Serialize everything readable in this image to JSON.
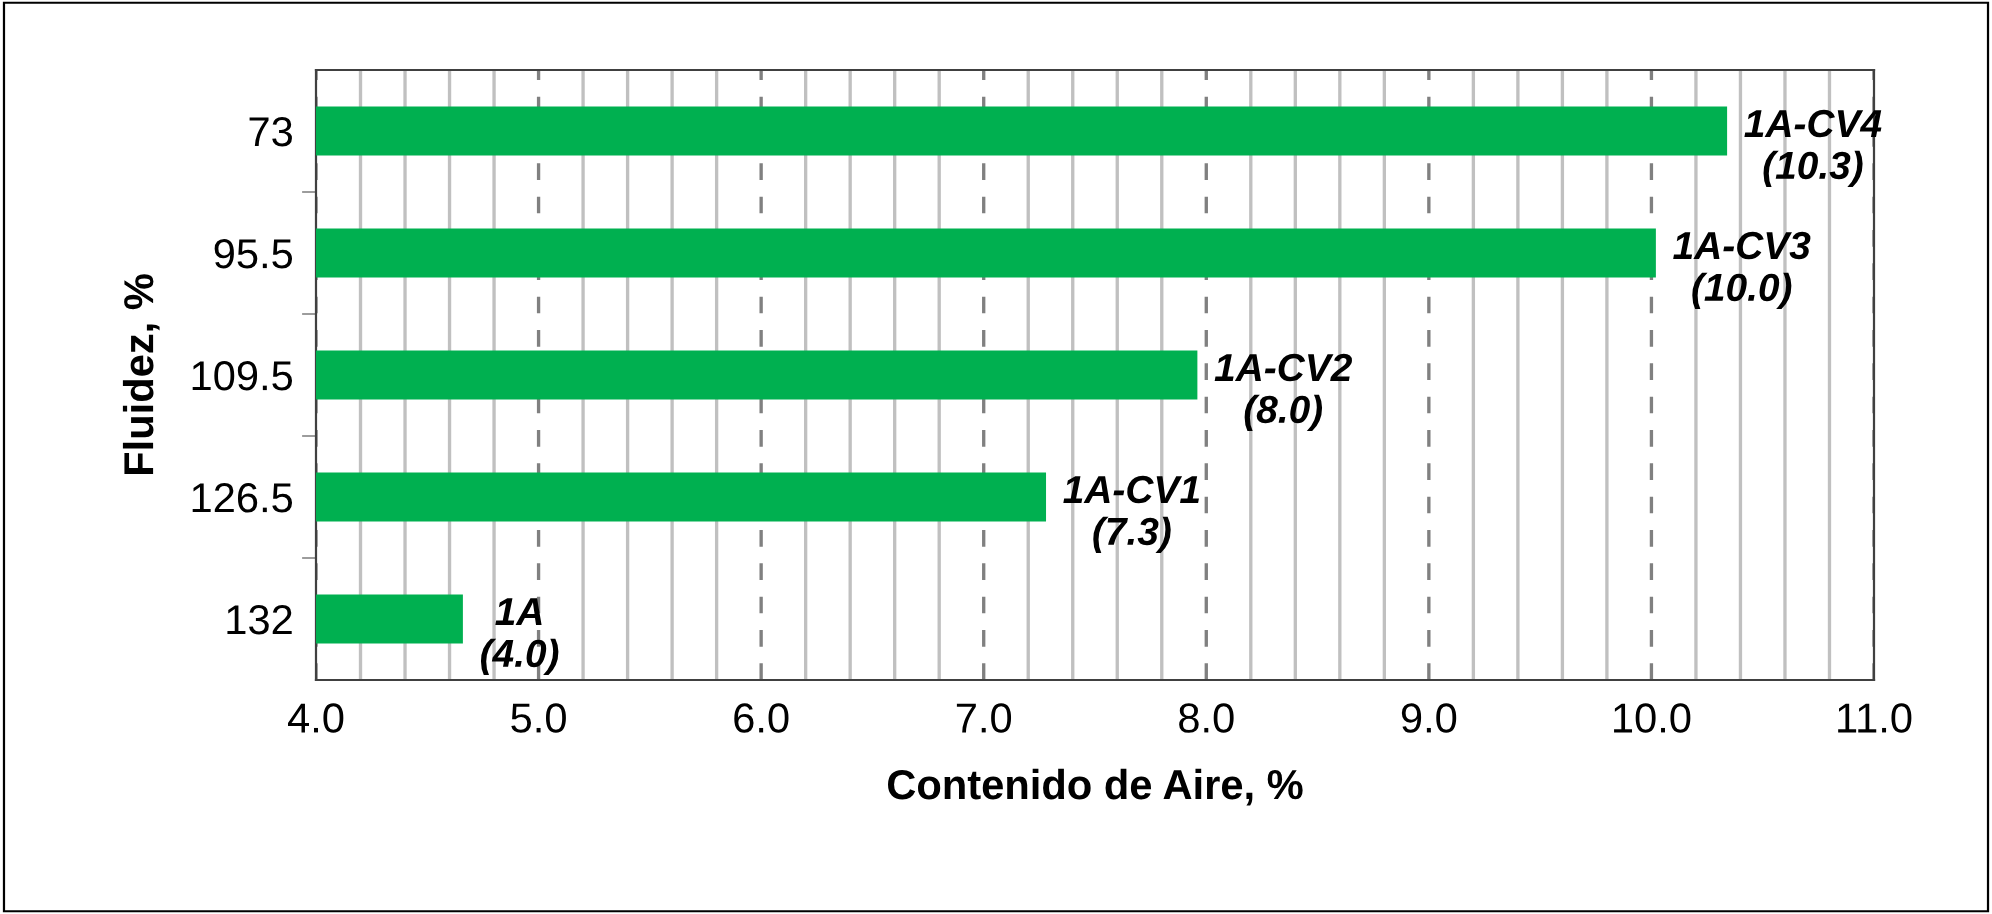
{
  "chart_data": {
    "type": "bar",
    "orientation": "horizontal",
    "categories": [
      "73",
      "95.5",
      "109.5",
      "126.5",
      "132"
    ],
    "values": [
      10.34,
      10.02,
      7.96,
      7.28,
      4.66
    ],
    "color": "#00b050",
    "xlabel": "Contenido de Aire, %",
    "ylabel": "Fluidez, %",
    "xlim": [
      4.0,
      11.0
    ],
    "xticks": [
      {
        "value": 4,
        "label": "4.0"
      },
      {
        "value": 4.2,
        "label": null
      },
      {
        "value": 4.4,
        "label": null
      },
      {
        "value": 4.6,
        "label": null
      },
      {
        "value": 4.8,
        "label": null
      },
      {
        "value": 5,
        "label": "5.0"
      },
      {
        "value": 5.2,
        "label": null
      },
      {
        "value": 5.4,
        "label": null
      },
      {
        "value": 5.6,
        "label": null
      },
      {
        "value": 5.8,
        "label": null
      },
      {
        "value": 6,
        "label": "6.0"
      },
      {
        "value": 6.2,
        "label": null
      },
      {
        "value": 6.4,
        "label": null
      },
      {
        "value": 6.6,
        "label": null
      },
      {
        "value": 6.8,
        "label": null
      },
      {
        "value": 7,
        "label": "7.0"
      },
      {
        "value": 7.2,
        "label": null
      },
      {
        "value": 7.4,
        "label": null
      },
      {
        "value": 7.6,
        "label": null
      },
      {
        "value": 7.8,
        "label": null
      },
      {
        "value": 8,
        "label": "8.0"
      },
      {
        "value": 8.2,
        "label": null
      },
      {
        "value": 8.4,
        "label": null
      },
      {
        "value": 8.6,
        "label": null
      },
      {
        "value": 8.8,
        "label": null
      },
      {
        "value": 9,
        "label": "9.0"
      },
      {
        "value": 9.2,
        "label": null
      },
      {
        "value": 9.4,
        "label": null
      },
      {
        "value": 9.6,
        "label": null
      },
      {
        "value": 9.8,
        "label": null
      },
      {
        "value": 10,
        "label": "10.0"
      },
      {
        "value": 10.2,
        "label": null
      },
      {
        "value": 10.4,
        "label": null
      },
      {
        "value": 10.6,
        "label": null
      },
      {
        "value": 10.8,
        "label": null
      },
      {
        "value": 11,
        "label": "11.0"
      }
    ],
    "grid": "x",
    "legend": false,
    "annotations": [
      {
        "text": "1A-CV4\n(10.3)",
        "x": 10.34,
        "y": "73"
      },
      {
        "text": "1A-CV3\n(10.0)",
        "x": 10.02,
        "y": "95.5"
      },
      {
        "text": "1A-CV2\n(8.0)",
        "x": 7.96,
        "y": "109.5"
      },
      {
        "text": "1A-CV1\n(7.3)",
        "x": 7.28,
        "y": "126.5"
      },
      {
        "text": "1A\n(4.0)",
        "x": 4.66,
        "y": "132"
      }
    ]
  }
}
